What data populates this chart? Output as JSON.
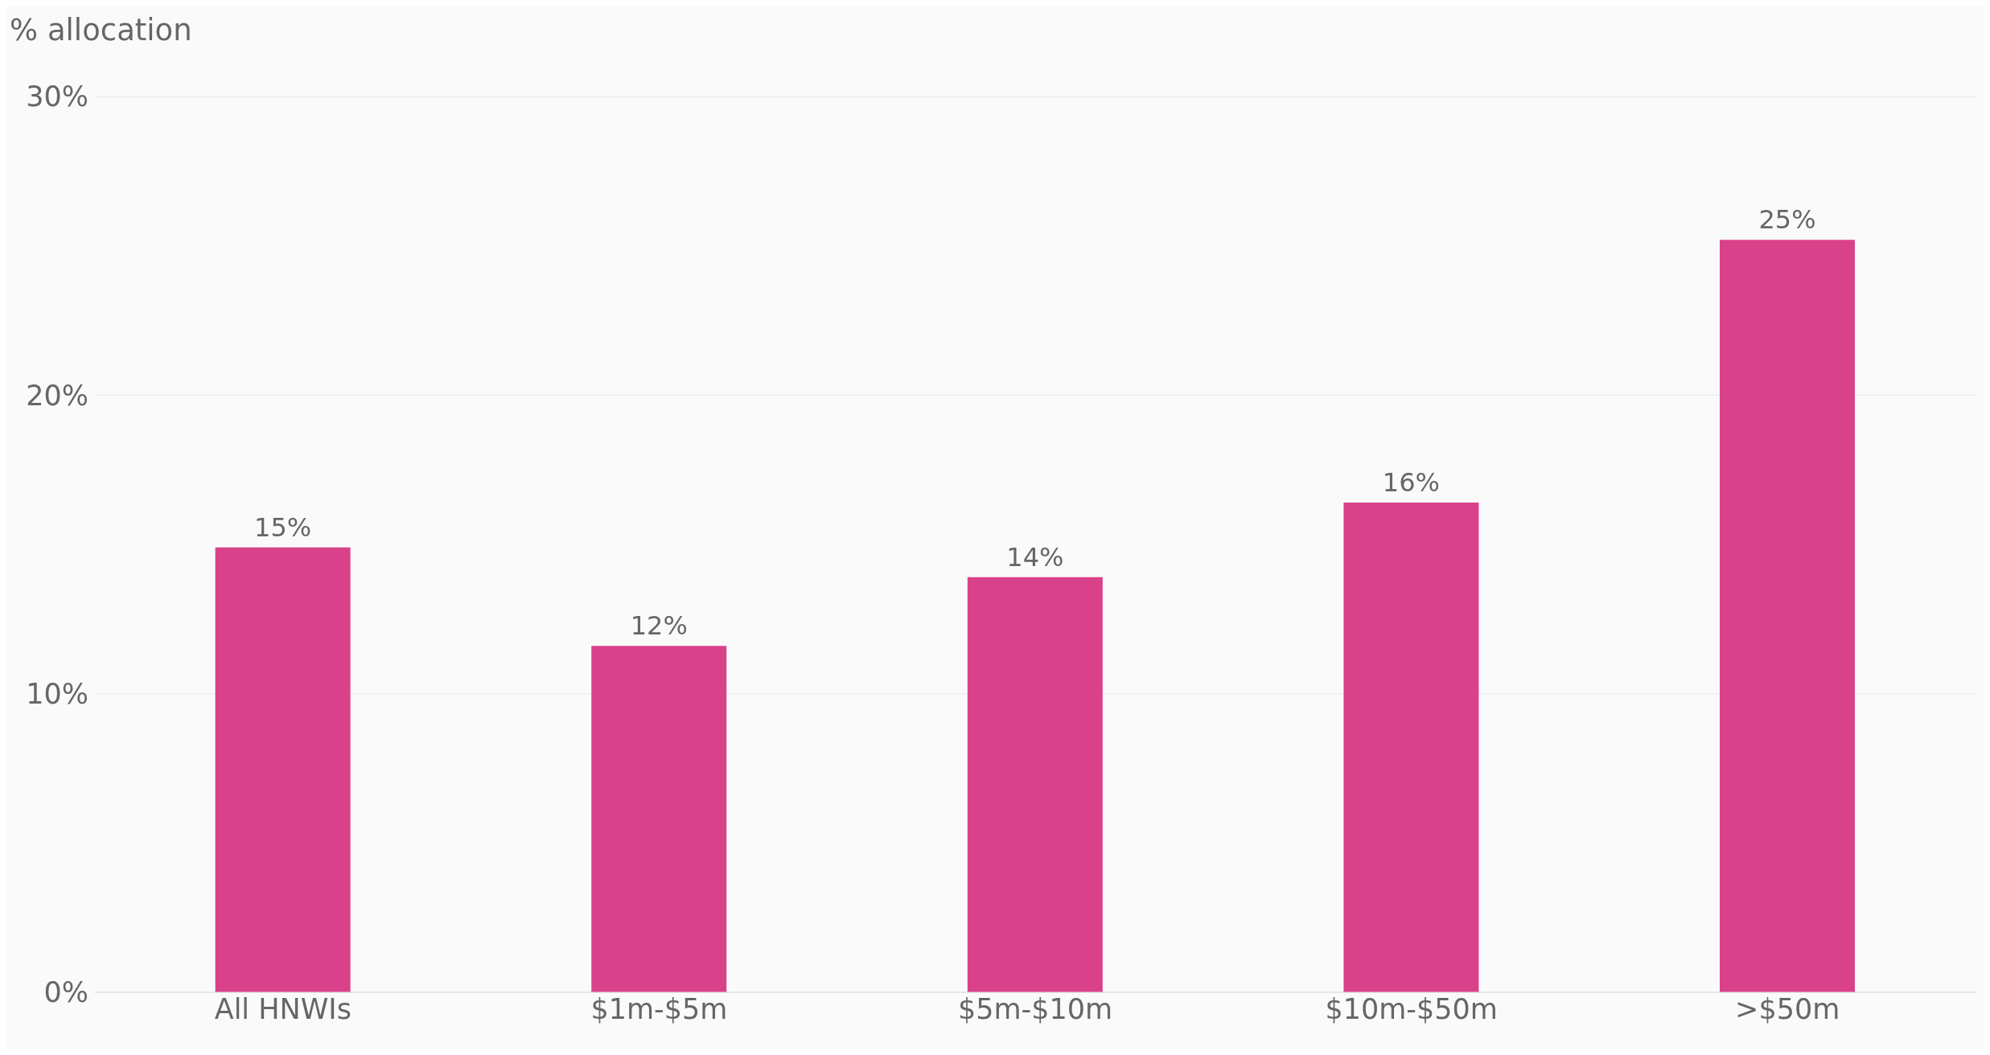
{
  "chart_data": {
    "type": "bar",
    "ylabel": "% allocation",
    "categories": [
      "All HNWIs",
      "$1m-$5m",
      "$5m-$10m",
      "$10m-$50m",
      ">$50m"
    ],
    "values": [
      14.9,
      11.6,
      13.9,
      16.4,
      25.2
    ],
    "value_labels": [
      "15%",
      "12%",
      "14%",
      "16%",
      "25%"
    ],
    "color": "#d9428a",
    "ylim": [
      0,
      30
    ],
    "yticks": [
      {
        "value": 0,
        "label": "0%"
      },
      {
        "value": 10,
        "label": "10%"
      },
      {
        "value": 20,
        "label": "20%"
      },
      {
        "value": 30,
        "label": "30%"
      }
    ],
    "grid": "y"
  }
}
